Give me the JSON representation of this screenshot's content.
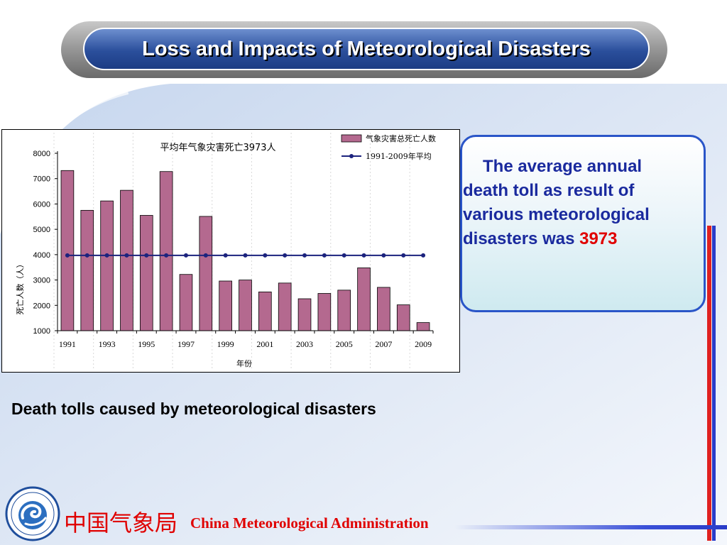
{
  "slide": {
    "title": "Loss and Impacts of Meteorological Disasters",
    "caption": "Death tolls caused by meteorological disasters",
    "info": {
      "line1": "The average annual",
      "line2": "death toll as result of",
      "line3": "various meteorological",
      "line4_prefix": "disasters was ",
      "value": "3973"
    },
    "footer": {
      "org_cn": "中国气象局",
      "org_en": "China Meteorological Administration"
    },
    "logo_icon": "cma-logo-icon"
  },
  "colors": {
    "title_bg": "#2b4f9c",
    "bar_fill": "#b4698f",
    "average_line": "#1c237e",
    "info_border": "#2a55c8",
    "info_text": "#1a2a9e",
    "accent_red": "#e00000"
  },
  "chart_data": {
    "type": "bar",
    "title": "平均年气象灾害死亡3973人",
    "xlabel": "年份",
    "ylabel": "死亡人数（人）",
    "ylim": [
      1000,
      8000
    ],
    "yticks": [
      1000,
      2000,
      3000,
      4000,
      5000,
      6000,
      7000,
      8000
    ],
    "xtick_labels": [
      "1991",
      "1993",
      "1995",
      "1997",
      "1999",
      "2001",
      "2003",
      "2005",
      "2007",
      "2009"
    ],
    "categories": [
      "1991",
      "1992",
      "1993",
      "1994",
      "1995",
      "1996",
      "1997",
      "1998",
      "1999",
      "2000",
      "2001",
      "2002",
      "2003",
      "2004",
      "2005",
      "2006",
      "2007",
      "2008",
      "2009"
    ],
    "legend_position": "top-right",
    "grid": false,
    "series": [
      {
        "name": "气象灾害总死亡人数",
        "type": "bar",
        "values": [
          7320,
          5750,
          6120,
          6540,
          5550,
          7280,
          3220,
          5510,
          2960,
          3000,
          2530,
          2880,
          2260,
          2470,
          2600,
          3480,
          2710,
          2020,
          1320
        ]
      },
      {
        "name": "1991-2009年平均",
        "type": "line",
        "values": [
          3973,
          3973,
          3973,
          3973,
          3973,
          3973,
          3973,
          3973,
          3973,
          3973,
          3973,
          3973,
          3973,
          3973,
          3973,
          3973,
          3973,
          3973,
          3973
        ]
      }
    ]
  }
}
